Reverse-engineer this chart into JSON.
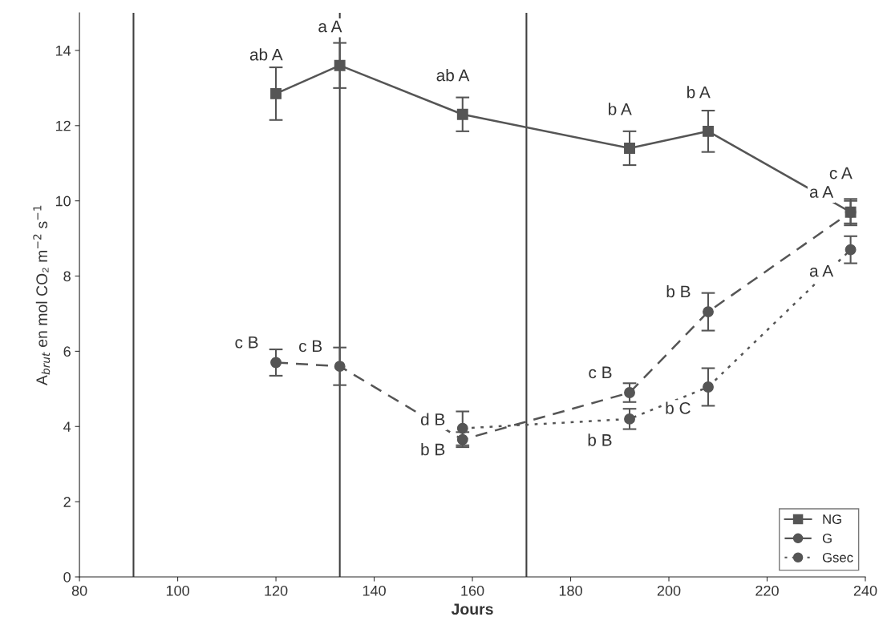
{
  "chart_data": {
    "type": "line",
    "xlabel": "Jours",
    "ylabel": "A$_{brut}$ en mol CO₂ m$^{−2}$ s$^{−1}$",
    "xlim": [
      80,
      240
    ],
    "xticks": [
      80,
      100,
      120,
      140,
      160,
      180,
      200,
      220,
      240
    ],
    "ylim": [
      0,
      15
    ],
    "yticks": [
      0,
      2,
      4,
      6,
      8,
      10,
      12,
      14
    ],
    "grid": false,
    "legend": "bottom right",
    "ref_lines": [
      {
        "axis": "x",
        "value": 91,
        "color": "#404040"
      },
      {
        "axis": "x",
        "value": 133,
        "color": "#404040"
      },
      {
        "axis": "x",
        "value": 171,
        "color": "#404040"
      }
    ],
    "series": [
      {
        "name": "NG",
        "color": "#555555",
        "marker": "square",
        "line_style": "solid",
        "x": [
          120,
          133,
          158,
          192,
          208,
          237
        ],
        "values": [
          12.85,
          13.6,
          12.3,
          11.4,
          11.85,
          9.7
        ],
        "errors": [
          0.7,
          0.6,
          0.45,
          0.45,
          0.55,
          0.35
        ],
        "value_labels": [
          "ab A",
          "a A",
          "ab A",
          "b A",
          "b A",
          "c A"
        ]
      },
      {
        "name": "G",
        "color": "#555555",
        "marker": "circle",
        "line_style": "dashed",
        "x": [
          120,
          133,
          158,
          192,
          208,
          237
        ],
        "values": [
          5.7,
          5.6,
          3.65,
          4.9,
          7.05,
          9.7
        ],
        "errors": [
          0.35,
          0.5,
          0.2,
          0.25,
          0.5,
          0.3
        ],
        "value_labels": [
          "c B",
          "c B",
          "d B",
          "c B",
          "b B",
          "a A"
        ]
      },
      {
        "name": "Gsec",
        "color": "#555555",
        "marker": "circle",
        "line_style": "dotted",
        "x": [
          158,
          192,
          208,
          237
        ],
        "values": [
          3.95,
          4.2,
          5.05,
          8.7
        ],
        "errors": [
          0.45,
          0.27,
          0.5,
          0.36
        ],
        "value_labels": [
          "b B",
          "b B",
          "b C",
          "a A"
        ]
      }
    ]
  }
}
